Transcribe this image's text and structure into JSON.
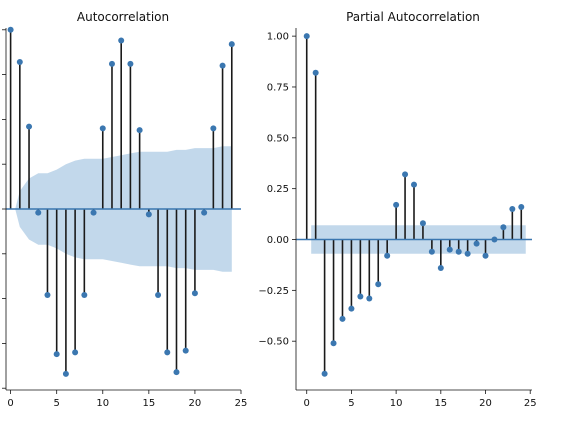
{
  "colors": {
    "stem": "#1a1a1a",
    "marker": "#3b77b0",
    "band": "#a8c8e2",
    "zero_line": "#3b77b0"
  },
  "chart_data": [
    {
      "type": "stem",
      "title": "Autocorrelation",
      "xlabel": "",
      "ylabel": "",
      "xlim": [
        -0.5,
        25
      ],
      "ylim": [
        -1.01,
        1.01
      ],
      "x_ticks": [
        0,
        5,
        10,
        15,
        20,
        25
      ],
      "x_tick_labels": [
        "0",
        "5",
        "10",
        "15",
        "20",
        "25"
      ],
      "y_ticks": [],
      "y_tick_labels": [],
      "lags": [
        0,
        1,
        2,
        3,
        4,
        5,
        6,
        7,
        8,
        9,
        10,
        11,
        12,
        13,
        14,
        15,
        16,
        17,
        18,
        19,
        20,
        21,
        22,
        23,
        24
      ],
      "values": [
        1.0,
        0.82,
        0.46,
        -0.02,
        -0.48,
        -0.81,
        -0.92,
        -0.8,
        -0.48,
        -0.02,
        0.45,
        0.81,
        0.94,
        0.81,
        0.44,
        -0.03,
        -0.48,
        -0.8,
        -0.91,
        -0.79,
        -0.47,
        -0.02,
        0.45,
        0.8,
        0.92
      ],
      "confidence_band": [
        0.0,
        0.1,
        0.17,
        0.2,
        0.2,
        0.22,
        0.25,
        0.27,
        0.28,
        0.28,
        0.28,
        0.29,
        0.3,
        0.31,
        0.32,
        0.32,
        0.32,
        0.32,
        0.33,
        0.33,
        0.34,
        0.34,
        0.34,
        0.35,
        0.35
      ],
      "grid": false
    },
    {
      "type": "stem",
      "title": "Partial Autocorrelation",
      "xlabel": "",
      "ylabel": "",
      "xlim": [
        -1.2,
        25.2
      ],
      "ylim": [
        -0.74,
        1.04
      ],
      "x_ticks": [
        0,
        5,
        10,
        15,
        20,
        25
      ],
      "x_tick_labels": [
        "0",
        "5",
        "10",
        "15",
        "20",
        "25"
      ],
      "y_ticks": [
        1.0,
        0.75,
        0.5,
        0.25,
        0.0,
        -0.25,
        -0.5
      ],
      "y_tick_labels": [
        "1.00",
        "0.75",
        "0.50",
        "0.25",
        "0.00",
        "−0.25",
        "−0.50"
      ],
      "lags": [
        0,
        1,
        2,
        3,
        4,
        5,
        6,
        7,
        8,
        9,
        10,
        11,
        12,
        13,
        14,
        15,
        16,
        17,
        18,
        19,
        20,
        21,
        22,
        23,
        24
      ],
      "values": [
        1.0,
        0.82,
        -0.66,
        -0.51,
        -0.39,
        -0.34,
        -0.28,
        -0.29,
        -0.22,
        -0.08,
        0.17,
        0.32,
        0.27,
        0.08,
        -0.06,
        -0.14,
        -0.05,
        -0.06,
        -0.07,
        -0.02,
        -0.08,
        0.0,
        0.06,
        0.15,
        0.16
      ],
      "confidence_band_halfwidth": 0.07,
      "grid": false
    }
  ]
}
